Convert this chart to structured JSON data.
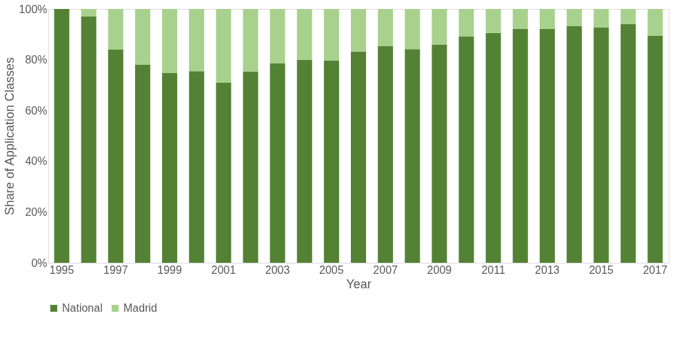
{
  "chart_data": {
    "type": "bar",
    "stacked": true,
    "xlabel": "Year",
    "ylabel": "Share of Application Classes",
    "categories": [
      "1995",
      null,
      "1997",
      null,
      "1999",
      null,
      "2001",
      null,
      "2003",
      null,
      "2005",
      null,
      "2007",
      null,
      "2009",
      null,
      "2011",
      null,
      "2013",
      null,
      "2015",
      null,
      "2017"
    ],
    "series": [
      {
        "name": "National",
        "color": "#548235",
        "values": [
          100,
          97,
          84,
          78,
          74.7,
          75.5,
          70.9,
          75.3,
          78.5,
          79.9,
          79.6,
          83.2,
          85.3,
          84.2,
          86,
          89.1,
          90.5,
          92.1,
          92.1,
          93.2,
          92.7,
          94,
          89.4
        ]
      },
      {
        "name": "Madrid",
        "color": "#a9d18e",
        "values": [
          0,
          3,
          16,
          22,
          25.3,
          24.5,
          29.1,
          24.7,
          21.5,
          20.1,
          20.4,
          16.8,
          14.7,
          15.8,
          14,
          10.9,
          9.5,
          7.9,
          7.9,
          6.8,
          7.3,
          6,
          10.6
        ]
      }
    ],
    "ylim": [
      0,
      100
    ],
    "yticks": [
      {
        "value": 0,
        "label": "0%"
      },
      {
        "value": 20,
        "label": "20%"
      },
      {
        "value": 40,
        "label": "40%"
      },
      {
        "value": 60,
        "label": "60%"
      },
      {
        "value": 80,
        "label": "80%"
      },
      {
        "value": 100,
        "label": "100%"
      }
    ],
    "grid": false,
    "legend": "bottom"
  }
}
